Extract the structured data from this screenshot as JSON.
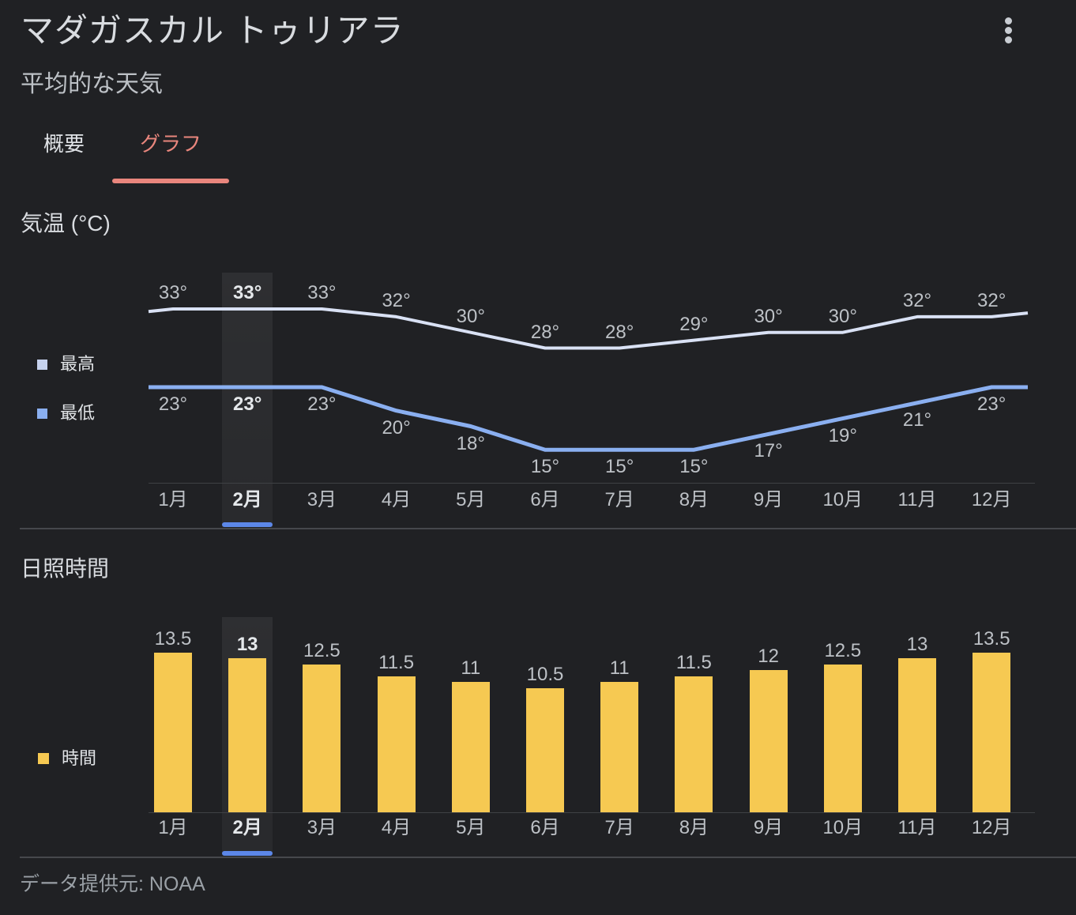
{
  "header": {
    "title": "マダガスカル トゥリアラ",
    "subtitle": "平均的な天気"
  },
  "tabs": [
    {
      "label": "概要",
      "active": false
    },
    {
      "label": "グラフ",
      "active": true
    }
  ],
  "temperature": {
    "heading": "気温 (°C)",
    "legend": [
      {
        "label": "最高"
      },
      {
        "label": "最低"
      }
    ]
  },
  "sunshine": {
    "heading": "日照時間",
    "legend": [
      {
        "label": "時間"
      }
    ]
  },
  "footer": {
    "source": "データ提供元: NOAA"
  },
  "colors": {
    "background": "#202124",
    "tab_accent": "#e9867d",
    "max_line": "#d9e1f4",
    "max_swatch": "#c6d2ee",
    "min_line": "#8aaff0",
    "min_swatch": "#8aaff0",
    "bar_fill": "#f6c952",
    "month_underline": "#5c87e8",
    "text_primary": "#d9dce0",
    "text_secondary": "#bdc1c6",
    "text_muted": "#9aa0a6",
    "gridline": "#3f4145",
    "divider": "#46484c"
  },
  "chart_data": [
    {
      "type": "line",
      "title": "気温 (°C)",
      "categories": [
        "1月",
        "2月",
        "3月",
        "4月",
        "5月",
        "6月",
        "7月",
        "8月",
        "9月",
        "10月",
        "11月",
        "12月"
      ],
      "series": [
        {
          "name": "最高",
          "values": [
            33,
            33,
            33,
            32,
            30,
            28,
            28,
            29,
            30,
            30,
            32,
            32
          ],
          "color_key": "max_line"
        },
        {
          "name": "最低",
          "values": [
            23,
            23,
            23,
            20,
            18,
            15,
            15,
            15,
            17,
            19,
            21,
            23
          ],
          "color_key": "min_line"
        }
      ],
      "unit": "°",
      "value_range_shown": [
        15,
        33
      ],
      "highlighted_category": "2月",
      "legend_position": "left",
      "grid": "baseline-only"
    },
    {
      "type": "bar",
      "title": "日照時間",
      "categories": [
        "1月",
        "2月",
        "3月",
        "4月",
        "5月",
        "6月",
        "7月",
        "8月",
        "9月",
        "10月",
        "11月",
        "12月"
      ],
      "series": [
        {
          "name": "時間",
          "values": [
            13.5,
            13,
            12.5,
            11.5,
            11,
            10.5,
            11,
            11.5,
            12,
            12.5,
            13,
            13.5
          ],
          "color_key": "bar_fill"
        }
      ],
      "unit": "h",
      "highlighted_category": "2月",
      "legend_position": "left",
      "grid": "baseline-only"
    }
  ]
}
